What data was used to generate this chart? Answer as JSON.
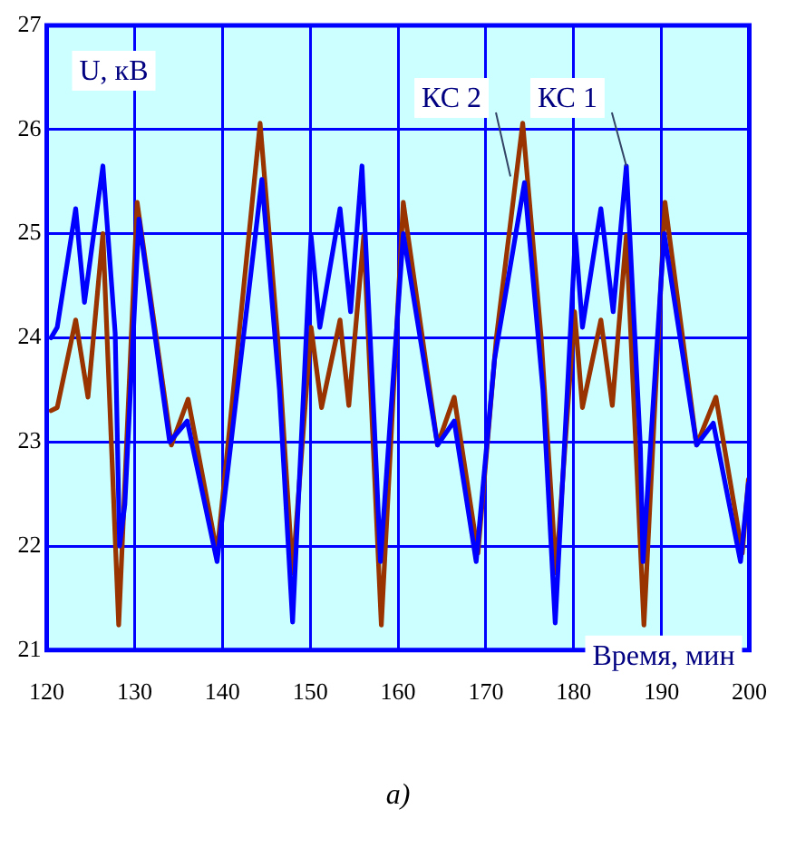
{
  "chart_data": {
    "type": "line",
    "xlabel": "Время, мин",
    "ylabel": "U, кВ",
    "xlim": [
      120,
      200
    ],
    "xticks": [
      120,
      130,
      140,
      150,
      160,
      170,
      180,
      190,
      200
    ],
    "ylim": [
      21,
      27
    ],
    "yticks": [
      21,
      22,
      23,
      24,
      25,
      26,
      27
    ],
    "grid": true,
    "legend": false,
    "marker": "none",
    "line_style": "solid",
    "series": [
      {
        "color": "#0000ff",
        "x": [
          120.5,
          121.2,
          123.3,
          124.3,
          126.4,
          127.8,
          128.3,
          128.9,
          130.5,
          134,
          136,
          139.4,
          144.5,
          146.5,
          148,
          150.1,
          151.1,
          153.4,
          154.6,
          155.9,
          157.3,
          158,
          160.6,
          164.5,
          166.4,
          168.9,
          171,
          174.4,
          176.5,
          177.9,
          180.2,
          181,
          183.1,
          184.5,
          186,
          187.6,
          187.9,
          190.3,
          194,
          195.9,
          199,
          199.9
        ],
        "values": [
          24.0,
          24.1,
          25.24,
          24.34,
          25.65,
          24.04,
          22.0,
          22.4,
          25.14,
          23.0,
          23.2,
          21.85,
          25.52,
          23.5,
          21.27,
          24.98,
          24.1,
          25.24,
          24.25,
          25.65,
          23.17,
          21.85,
          25.0,
          22.97,
          23.2,
          21.85,
          23.8,
          25.49,
          23.5,
          21.26,
          24.98,
          24.1,
          25.24,
          24.25,
          25.65,
          22.94,
          21.85,
          25.0,
          22.97,
          23.18,
          21.85,
          22.6
        ]
      },
      {
        "color": "#993300",
        "x": [
          120.5,
          121.2,
          123.3,
          124.7,
          126.4,
          128.2,
          130.3,
          134.2,
          136.1,
          139.4,
          144.3,
          146.3,
          148,
          150.1,
          151.3,
          153.4,
          154.4,
          156.1,
          158.1,
          160.6,
          164.5,
          166.4,
          169.1,
          171.2,
          174.2,
          176.3,
          178,
          180.1,
          181,
          183.1,
          184.4,
          186,
          188,
          190.4,
          194,
          196.2,
          199.2,
          199.9
        ],
        "values": [
          23.3,
          23.33,
          24.17,
          23.43,
          25.0,
          21.24,
          25.3,
          22.97,
          23.41,
          21.93,
          26.06,
          24.0,
          21.74,
          24.1,
          23.33,
          24.17,
          23.35,
          24.98,
          21.24,
          25.3,
          22.97,
          23.43,
          21.93,
          24.0,
          26.06,
          24.0,
          21.74,
          24.25,
          23.33,
          24.17,
          23.35,
          24.98,
          21.24,
          25.3,
          22.97,
          23.43,
          21.93,
          22.64
        ]
      }
    ],
    "annotations": [
      {
        "text": "КС 2",
        "x": 172.8,
        "y": 25.55
      },
      {
        "text": "КС 1",
        "x": 186,
        "y": 25.65
      },
      "а)"
    ]
  }
}
